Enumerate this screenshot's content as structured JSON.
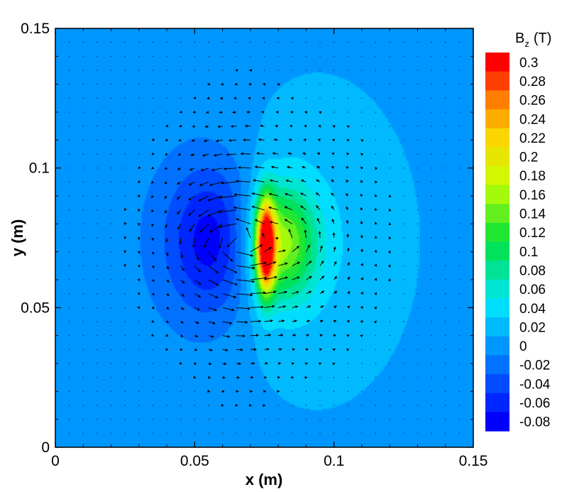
{
  "chart_data": {
    "type": "heatmap",
    "overlay": "vector-field",
    "title": "",
    "xlabel": "x (m)",
    "ylabel": "y (m)",
    "xlim": [
      0,
      0.15
    ],
    "ylim": [
      0,
      0.15
    ],
    "x_ticks": [
      {
        "value": 0,
        "label": "0"
      },
      {
        "value": 0.05,
        "label": "0.05"
      },
      {
        "value": 0.1,
        "label": "0.1"
      },
      {
        "value": 0.15,
        "label": "0.15"
      }
    ],
    "y_ticks": [
      {
        "value": 0,
        "label": "0"
      },
      {
        "value": 0.05,
        "label": "0.05"
      },
      {
        "value": 0.1,
        "label": "0.1"
      },
      {
        "value": 0.15,
        "label": "0.15"
      }
    ],
    "colorbar": {
      "title_main": "B",
      "title_sub": "z",
      "title_unit": "(T)",
      "min": -0.08,
      "max": 0.3,
      "levels": [
        "0.3",
        "0.28",
        "0.26",
        "0.24",
        "0.22",
        "0.2",
        "0.18",
        "0.16",
        "0.14",
        "0.12",
        "0.1",
        "0.08",
        "0.06",
        "0.04",
        "0.02",
        "0",
        "-0.02",
        "-0.04",
        "-0.06",
        "-0.08"
      ]
    },
    "background_value": 0.005,
    "features": [
      {
        "kind": "gaussian",
        "x": 0.0565,
        "y": 0.074,
        "sx": 0.0115,
        "sy": 0.019,
        "amplitude": -0.085
      },
      {
        "kind": "gaussian",
        "x": 0.052,
        "y": 0.075,
        "sx": 0.032,
        "sy": 0.043,
        "amplitude": -0.013
      },
      {
        "kind": "gaussian",
        "x": 0.0755,
        "y": 0.072,
        "sx": 0.0023,
        "sy": 0.0115,
        "amplitude": 0.29
      },
      {
        "kind": "gaussian",
        "x": 0.081,
        "y": 0.073,
        "sx": 0.0085,
        "sy": 0.014,
        "amplitude": 0.14
      },
      {
        "kind": "gaussian",
        "x": 0.087,
        "y": 0.074,
        "sx": 0.024,
        "sy": 0.036,
        "amplitude": 0.03
      }
    ],
    "vector_field": {
      "grid_step": 0.005,
      "sources": [
        {
          "x": 0.066,
          "y": 0.074,
          "strength": 1.0,
          "sx": 0.009,
          "sy": 0.024
        },
        {
          "x": 0.083,
          "y": 0.074,
          "strength": 0.5,
          "sx": 0.019,
          "sy": 0.024
        },
        {
          "x": 0.055,
          "y": 0.074,
          "strength": 0.35,
          "sx": 0.016,
          "sy": 0.024
        }
      ],
      "color": "#000000"
    }
  }
}
